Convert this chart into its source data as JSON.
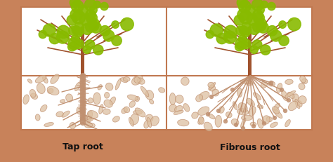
{
  "bg_color": "#c8825a",
  "panel_color": "#ffffff",
  "soil_border_color": "#c07850",
  "trunk_color": "#a0522d",
  "leaf_color": "#88bb00",
  "root_color": "#c09070",
  "rock_color": "#ddc0a0",
  "rock_edge_color": "#c09070",
  "label_tap": "Tap root",
  "label_fibrous": "Fibrous root",
  "label_fontsize": 9,
  "label_fontweight": "bold",
  "label_color": "#111111",
  "fig_width": 4.74,
  "fig_height": 2.31
}
